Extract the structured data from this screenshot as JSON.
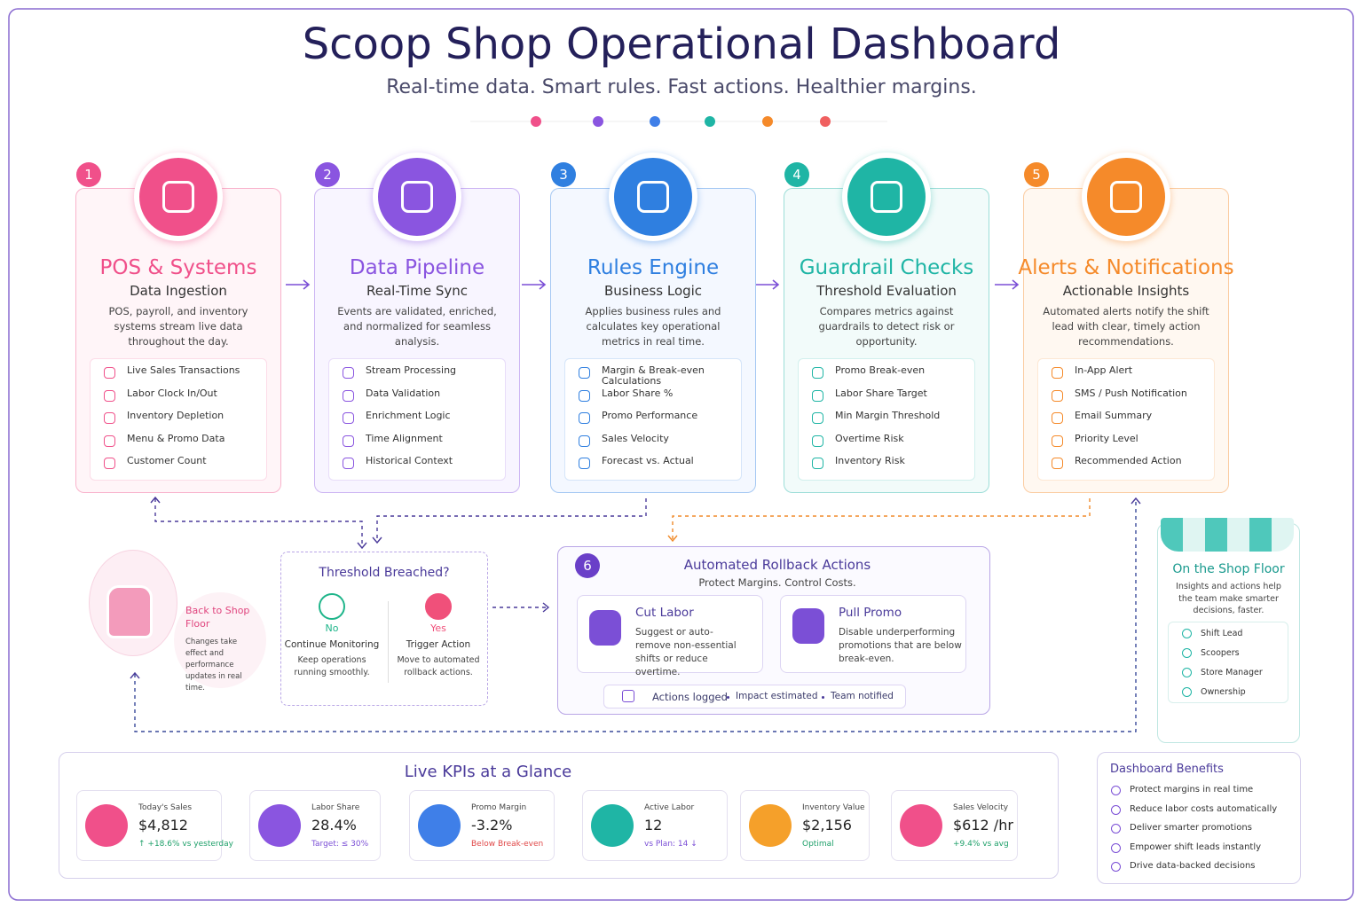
{
  "header": {
    "title": "Scoop Shop Operational Dashboard",
    "subtitle": "Real-time data. Smart rules. Fast actions. Healthier margins."
  },
  "stages": [
    {
      "number": "1",
      "title": "POS & Systems",
      "subtitle": "Data Ingestion",
      "description": "POS, payroll, and inventory systems stream live data throughout the day.",
      "items": [
        "Live Sales Transactions",
        "Labor Clock In/Out",
        "Inventory Depletion",
        "Menu & Promo Data",
        "Customer Count"
      ]
    },
    {
      "number": "2",
      "title": "Data Pipeline",
      "subtitle": "Real-Time Sync",
      "description": "Events are validated, enriched, and normalized for seamless analysis.",
      "items": [
        "Stream Processing",
        "Data Validation",
        "Enrichment Logic",
        "Time Alignment",
        "Historical Context"
      ]
    },
    {
      "number": "3",
      "title": "Rules Engine",
      "subtitle": "Business Logic",
      "description": "Applies business rules and calculates key operational metrics in real time.",
      "items": [
        "Margin & Break-even Calculations",
        "Labor Share %",
        "Promo Performance",
        "Sales Velocity",
        "Forecast vs. Actual"
      ]
    },
    {
      "number": "4",
      "title": "Guardrail Checks",
      "subtitle": "Threshold Evaluation",
      "description": "Compares metrics against guardrails to detect risk or opportunity.",
      "items": [
        "Promo Break-even",
        "Labor Share Target",
        "Min Margin Threshold",
        "Overtime Risk",
        "Inventory Risk"
      ]
    },
    {
      "number": "5",
      "title": "Alerts & Notifications",
      "subtitle": "Actionable Insights",
      "description": "Automated alerts notify the shift lead with clear, timely action recommendations.",
      "items": [
        "In-App Alert",
        "SMS / Push Notification",
        "Email Summary",
        "Priority Level",
        "Recommended Action"
      ]
    }
  ],
  "decision": {
    "title": "Threshold Breached?",
    "no": {
      "label": "No",
      "title": "Continue Monitoring",
      "description": "Keep operations running smoothly."
    },
    "yes": {
      "label": "Yes",
      "title": "Trigger Action",
      "description": "Move to automated rollback actions."
    }
  },
  "rollback": {
    "number": "6",
    "title": "Automated Rollback Actions",
    "subtitle": "Protect Margins. Control Costs.",
    "actions": [
      {
        "title": "Cut Labor",
        "description": "Suggest or auto-remove non-essential shifts or reduce overtime."
      },
      {
        "title": "Pull Promo",
        "description": "Disable underperforming promotions that are below break-even."
      }
    ],
    "footer": [
      "Actions logged",
      "Impact estimated",
      "Team notified"
    ]
  },
  "back_to_floor": {
    "title": "Back to Shop Floor",
    "description": "Changes take effect and performance updates in real time."
  },
  "shop_floor": {
    "title": "On the Shop Floor",
    "description": "Insights and actions help the team make smarter decisions, faster.",
    "roles": [
      "Shift Lead",
      "Scoopers",
      "Store Manager",
      "Ownership"
    ]
  },
  "kpis": {
    "title": "Live KPIs at a Glance",
    "items": [
      {
        "label": "Today's Sales",
        "value": "$4,812",
        "note": "↑ +18.6% vs yesterday"
      },
      {
        "label": "Labor Share",
        "value": "28.4%",
        "note": "Target: ≤ 30%"
      },
      {
        "label": "Promo Margin",
        "value": "-3.2%",
        "note": "Below Break-even"
      },
      {
        "label": "Active Labor",
        "value": "12",
        "note": "vs Plan: 14 ↓"
      },
      {
        "label": "Inventory Value",
        "value": "$2,156",
        "note": "Optimal"
      },
      {
        "label": "Sales Velocity",
        "value": "$612 /hr",
        "note": "+9.4% vs avg"
      }
    ]
  },
  "benefits": {
    "title": "Dashboard Benefits",
    "items": [
      "Protect margins in real time",
      "Reduce labor costs automatically",
      "Deliver smarter promotions",
      "Empower shift leads instantly",
      "Drive data-backed decisions"
    ]
  }
}
